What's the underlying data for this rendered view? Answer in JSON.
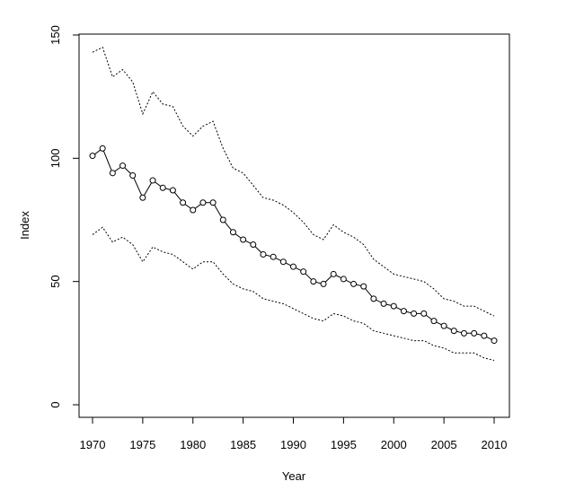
{
  "chart_data": {
    "type": "line",
    "title": "",
    "xlabel": "Year",
    "ylabel": "Index",
    "xlim": [
      1970,
      2010
    ],
    "ylim": [
      0,
      150
    ],
    "x_ticks": [
      1970,
      1975,
      1980,
      1985,
      1990,
      1995,
      2000,
      2005,
      2010
    ],
    "y_ticks": [
      0,
      50,
      100,
      150
    ],
    "grid": false,
    "legend": "none",
    "x": [
      1970,
      1971,
      1972,
      1973,
      1974,
      1975,
      1976,
      1977,
      1978,
      1979,
      1980,
      1981,
      1982,
      1983,
      1984,
      1985,
      1986,
      1987,
      1988,
      1989,
      1990,
      1991,
      1992,
      1993,
      1994,
      1995,
      1996,
      1997,
      1998,
      1999,
      2000,
      2001,
      2002,
      2003,
      2004,
      2005,
      2006,
      2007,
      2008,
      2009,
      2010
    ],
    "series": [
      {
        "style": "solid-with-markers",
        "color": "#000000",
        "values": [
          101,
          104,
          94,
          97,
          93,
          84,
          91,
          88,
          87,
          82,
          79,
          82,
          82,
          75,
          70,
          67,
          65,
          61,
          60,
          58,
          56,
          54,
          50,
          49,
          53,
          51,
          49,
          48,
          43,
          41,
          40,
          38,
          37,
          37,
          34,
          32,
          30,
          29,
          29,
          28,
          26
        ]
      },
      {
        "style": "dotted",
        "color": "#000000",
        "values": [
          143,
          145,
          133,
          136,
          131,
          118,
          127,
          122,
          121,
          113,
          109,
          113,
          115,
          104,
          96,
          94,
          89,
          84,
          83,
          81,
          78,
          74,
          69,
          67,
          73,
          70,
          68,
          65,
          59,
          56,
          53,
          52,
          51,
          50,
          47,
          43,
          42,
          40,
          40,
          38,
          36
        ]
      },
      {
        "style": "dotted",
        "color": "#000000",
        "values": [
          69,
          72,
          66,
          68,
          65,
          58,
          64,
          62,
          61,
          58,
          55,
          58,
          58,
          53,
          49,
          47,
          46,
          43,
          42,
          41,
          39,
          37,
          35,
          34,
          37,
          36,
          34,
          33,
          30,
          29,
          28,
          27,
          26,
          26,
          24,
          23,
          21,
          21,
          21,
          19,
          18
        ]
      }
    ]
  }
}
